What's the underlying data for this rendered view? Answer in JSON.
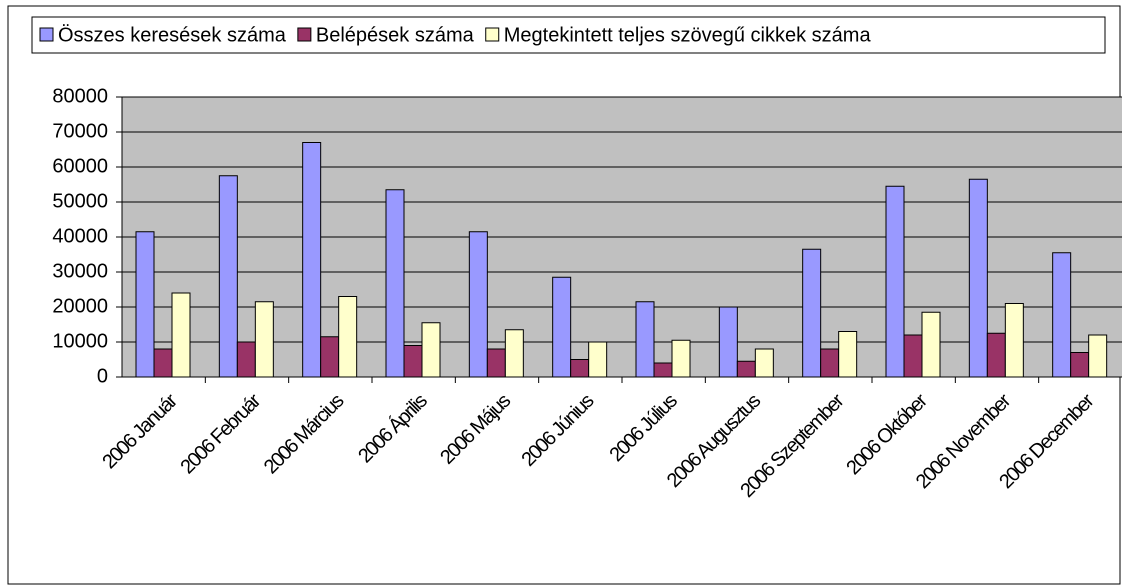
{
  "chart_data": {
    "type": "bar",
    "categories": [
      "2006 Január",
      "2006 Február",
      "2006 Március",
      "2006 Április",
      "2006 Május",
      "2006 Június",
      "2006 Július",
      "2006 Augusztus",
      "2006 Szeptember",
      "2006 Október",
      "2006 November",
      "2006 December"
    ],
    "series": [
      {
        "name": "Összes keresések száma",
        "color": "#9999ff",
        "values": [
          41500,
          57500,
          67000,
          53500,
          41500,
          28500,
          21500,
          20000,
          36500,
          54500,
          56500,
          35500
        ]
      },
      {
        "name": "Belépések száma",
        "color": "#993366",
        "values": [
          8000,
          10000,
          11500,
          9000,
          8000,
          5000,
          4000,
          4500,
          8000,
          12000,
          12500,
          7000
        ]
      },
      {
        "name": "Megtekintett teljes szövegű cikkek száma",
        "color": "#ffffcc",
        "values": [
          24000,
          21500,
          23000,
          15500,
          13500,
          10000,
          10500,
          8000,
          13000,
          18500,
          21000,
          12000
        ]
      }
    ],
    "ylim": [
      0,
      80000
    ],
    "yticks": [
      0,
      10000,
      20000,
      30000,
      40000,
      50000,
      60000,
      70000,
      80000
    ],
    "grid": true,
    "legend": "top"
  }
}
